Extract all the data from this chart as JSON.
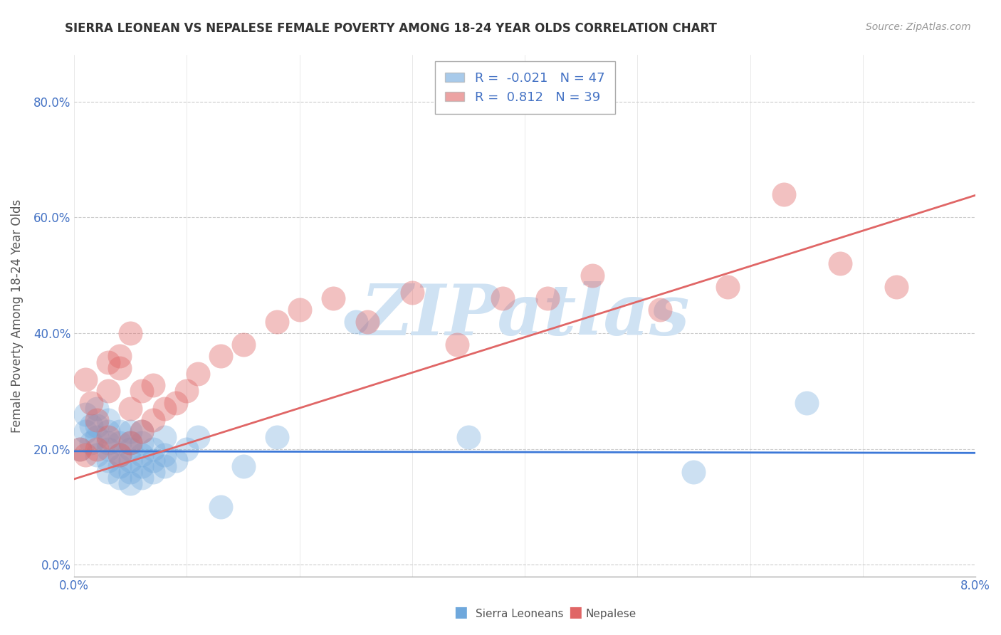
{
  "title": "SIERRA LEONEAN VS NEPALESE FEMALE POVERTY AMONG 18-24 YEAR OLDS CORRELATION CHART",
  "source": "Source: ZipAtlas.com",
  "ylabel": "Female Poverty Among 18-24 Year Olds",
  "xlim": [
    0.0,
    0.08
  ],
  "ylim": [
    -0.02,
    0.88
  ],
  "yticks": [
    0.0,
    0.2,
    0.4,
    0.6,
    0.8
  ],
  "ytick_labels": [
    "0.0%",
    "20.0%",
    "40.0%",
    "60.0%",
    "80.0%"
  ],
  "xticks": [
    0.0,
    0.01,
    0.02,
    0.03,
    0.04,
    0.05,
    0.06,
    0.07,
    0.08
  ],
  "xtick_labels": [
    "0.0%",
    "",
    "",
    "",
    "",
    "",
    "",
    "",
    "8.0%"
  ],
  "sierra_R": -0.021,
  "sierra_N": 47,
  "nepal_R": 0.812,
  "nepal_N": 39,
  "sierra_color": "#6fa8dc",
  "nepal_color": "#e06666",
  "sierra_line_color": "#3c78d8",
  "nepal_line_color": "#e06666",
  "watermark": "ZIPatlas",
  "watermark_color": "#cfe2f3",
  "background_color": "#ffffff",
  "sierra_x": [
    0.0005,
    0.001,
    0.001,
    0.0015,
    0.0015,
    0.002,
    0.002,
    0.002,
    0.002,
    0.003,
    0.003,
    0.003,
    0.003,
    0.003,
    0.003,
    0.004,
    0.004,
    0.004,
    0.004,
    0.004,
    0.005,
    0.005,
    0.005,
    0.005,
    0.005,
    0.005,
    0.006,
    0.006,
    0.006,
    0.006,
    0.006,
    0.007,
    0.007,
    0.007,
    0.008,
    0.008,
    0.008,
    0.009,
    0.01,
    0.011,
    0.013,
    0.015,
    0.018,
    0.025,
    0.035,
    0.055,
    0.065
  ],
  "sierra_y": [
    0.2,
    0.23,
    0.26,
    0.21,
    0.24,
    0.19,
    0.22,
    0.24,
    0.27,
    0.16,
    0.18,
    0.2,
    0.21,
    0.23,
    0.25,
    0.15,
    0.17,
    0.19,
    0.21,
    0.23,
    0.14,
    0.16,
    0.18,
    0.2,
    0.21,
    0.23,
    0.15,
    0.17,
    0.19,
    0.21,
    0.23,
    0.16,
    0.18,
    0.2,
    0.17,
    0.19,
    0.22,
    0.18,
    0.2,
    0.22,
    0.1,
    0.17,
    0.22,
    0.42,
    0.22,
    0.16,
    0.28
  ],
  "nepal_x": [
    0.0005,
    0.001,
    0.001,
    0.0015,
    0.002,
    0.002,
    0.003,
    0.003,
    0.004,
    0.004,
    0.005,
    0.005,
    0.006,
    0.006,
    0.007,
    0.007,
    0.008,
    0.009,
    0.01,
    0.011,
    0.013,
    0.015,
    0.018,
    0.02,
    0.023,
    0.026,
    0.03,
    0.034,
    0.038,
    0.042,
    0.046,
    0.052,
    0.058,
    0.063,
    0.068,
    0.073,
    0.003,
    0.004,
    0.005
  ],
  "nepal_y": [
    0.2,
    0.19,
    0.32,
    0.28,
    0.2,
    0.25,
    0.22,
    0.3,
    0.19,
    0.34,
    0.21,
    0.27,
    0.23,
    0.3,
    0.25,
    0.31,
    0.27,
    0.28,
    0.3,
    0.33,
    0.36,
    0.38,
    0.42,
    0.44,
    0.46,
    0.42,
    0.47,
    0.38,
    0.46,
    0.46,
    0.5,
    0.44,
    0.48,
    0.64,
    0.52,
    0.48,
    0.35,
    0.36,
    0.4
  ],
  "sierra_line_x": [
    0.0,
    0.08
  ],
  "sierra_line_y": [
    0.196,
    0.193
  ],
  "nepal_line_x": [
    0.0,
    0.08
  ],
  "nepal_line_y": [
    0.148,
    0.638
  ]
}
